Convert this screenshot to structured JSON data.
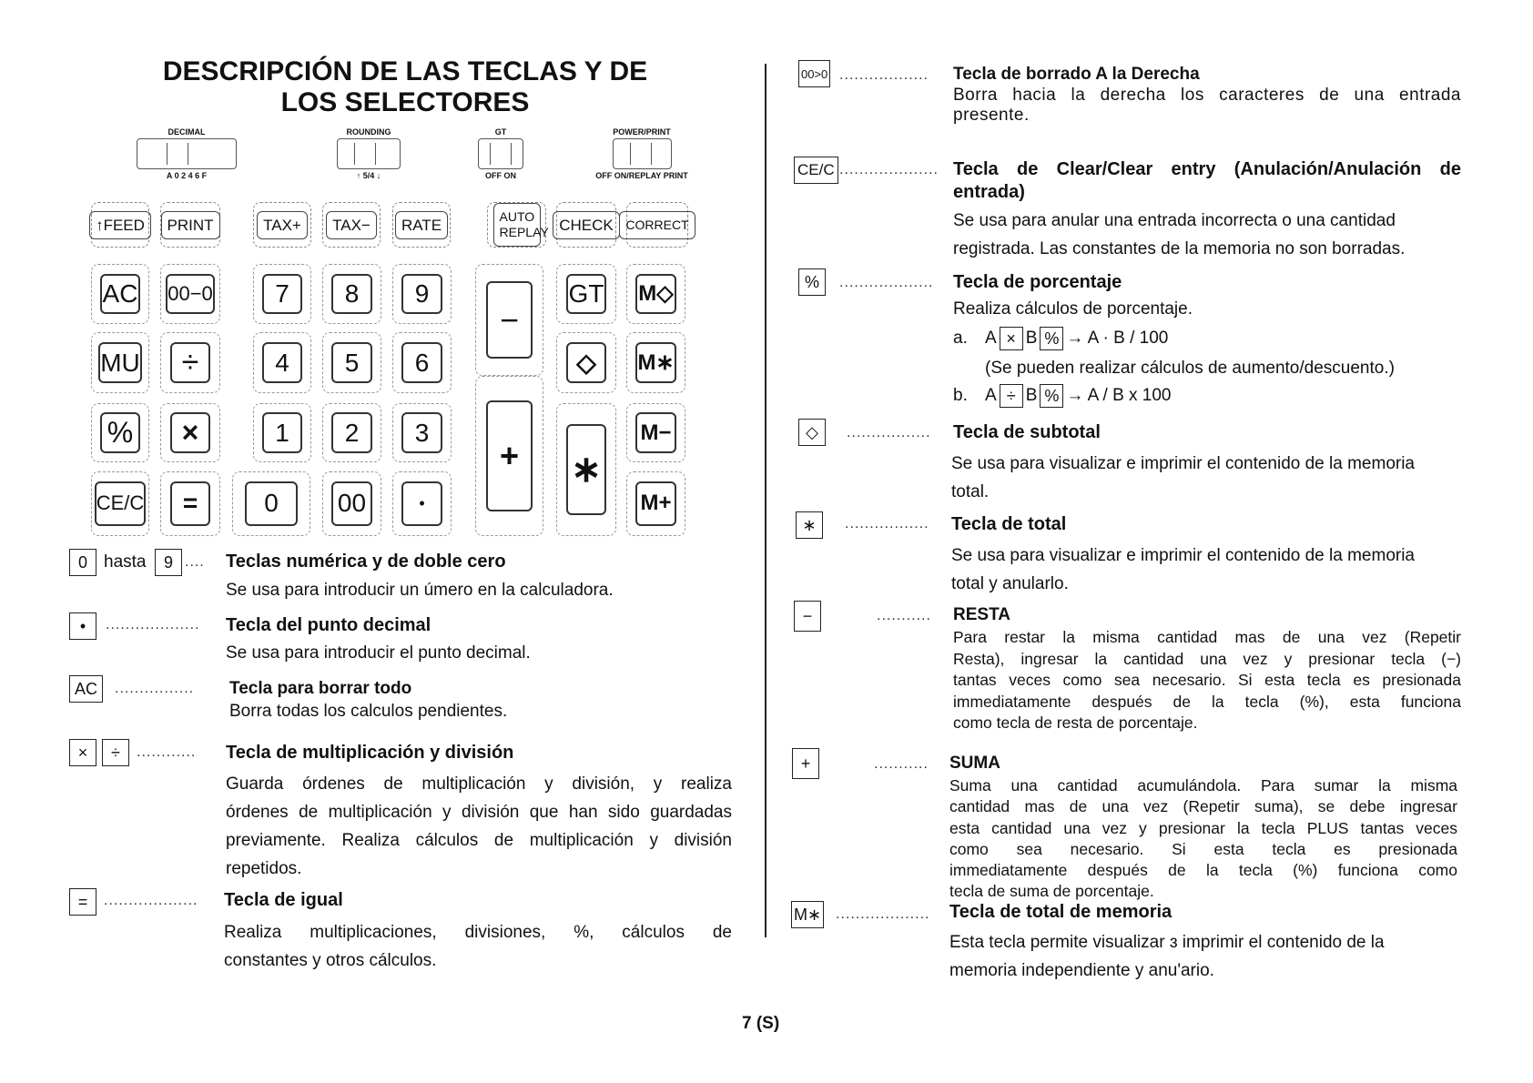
{
  "title": [
    "DESCRIPCIÓN DE LAS TECLAS Y DE",
    "LOS SELECTORES"
  ],
  "switches": [
    {
      "label": "DECIMAL",
      "marks": "A 0 2 4 6 F"
    },
    {
      "label": "ROUNDING",
      "marks": "↑ 5/4 ↓"
    },
    {
      "label": "GT",
      "marks": "OFF ON"
    },
    {
      "label": "POWER/PRINT",
      "marks": "OFF ON/REPLAY PRINT"
    }
  ],
  "function_keys": [
    "↑FEED",
    "PRINT",
    "TAX+",
    "TAX−",
    "RATE",
    "AUTO REPLAY",
    "CHECK",
    "CORRECT"
  ],
  "keys": {
    "ac": "AC",
    "k00_0": "00−0",
    "k7": "7",
    "k8": "8",
    "k9": "9",
    "minus": "−",
    "gt": "GT",
    "mdiamond": "M◇",
    "mu": "MU",
    "div": "÷",
    "k4": "4",
    "k5": "5",
    "k6": "6",
    "diamond": "◇",
    "mstar": "M∗",
    "pct": "%",
    "mul": "×",
    "k1": "1",
    "k2": "2",
    "k3": "3",
    "plus": "+",
    "star": "∗",
    "mminus": "M−",
    "cec": "CE/C",
    "eq": "=",
    "k0": "0",
    "k00": "00",
    "dot": "•",
    "mplus": "M+"
  },
  "left": [
    {
      "icon": "0",
      "icon2": "9",
      "between": "hasta",
      "dots": "....",
      "heading": "Teclas numérica y de doble cero",
      "body": [
        "Se usa para introducir un úmero en la calculadora."
      ]
    },
    {
      "icon": "•",
      "dots": "...................",
      "heading": "Tecla del punto decimal",
      "body": [
        "Se usa para introducir el punto decimal."
      ]
    },
    {
      "icon": "AC",
      "dots": "................",
      "heading": "Tecla para borrar todo",
      "body": [
        "Borra todas los calculos pendientes."
      ]
    },
    {
      "icon": "×",
      "icon2": "÷",
      "dots": "............",
      "heading": "Tecla de multiplicación y división",
      "body": [
        "Guarda órdenes de multiplicación y división, y realiza",
        "órdenes de multiplicación y división que han sido guardadas",
        "previamente. Realiza cálculos de multiplicación y división",
        "repetidos."
      ]
    },
    {
      "icon": "=",
      "dots": "...................",
      "heading": "Tecla de igual",
      "body": [
        "Realiza multiplicaciones, divisiones, %, cálculos de",
        "constantes y otros cálculos."
      ]
    }
  ],
  "right": [
    {
      "icon": "00>0",
      "dots": "..................",
      "heading": "Tecla de borrado A la Derecha",
      "body": [
        "Borra hacia la derecha los caracteres de una entrada",
        "presente."
      ]
    },
    {
      "icon": "CE/C",
      "dots": "....................",
      "heading": "Tecla de Clear/Clear entry (Anulación/Anulación de entrada)",
      "body": [
        "Se usa para anular una entrada incorrecta o una cantidad",
        "registrada. Las constantes de la memoria no son borradas."
      ]
    },
    {
      "icon": "%",
      "dots": "...................",
      "heading": "Tecla de porcentaje",
      "body": [
        "Realiza cálculos de porcentaje."
      ],
      "examples": [
        {
          "prefix": "a.",
          "a": "A",
          "op": "×",
          "b": "B",
          "pct": "%",
          "result": "→ A · B / 100"
        },
        {
          "note": "(Se pueden realizar cálculos de aumento/descuento.)"
        },
        {
          "prefix": "b.",
          "a": "A",
          "op": "÷",
          "b": "B",
          "pct": "%",
          "result": "→ A / B x 100"
        }
      ]
    },
    {
      "icon": "◇",
      "dots": ".................",
      "heading": "Tecla de subtotal",
      "body": [
        "Se usa para visualizar e imprimir el contenido de la memoria",
        "total."
      ]
    },
    {
      "icon": "∗",
      "dots": ".................",
      "heading": "Tecla de total",
      "body": [
        "Se usa para visualizar e imprimir el contenido de la memoria",
        "total y anularlo."
      ]
    },
    {
      "icon": "−",
      "dots": "...........",
      "heading": "RESTA",
      "body": [
        "Para restar la misma cantidad mas de una vez (Repetir",
        "Resta), ingresar la cantidad una vez y presionar tecla (−)",
        "tantas veces como sea necesario. Si esta tecla es presionada",
        "immediatamente después de la tecla (%), esta funciona",
        "como tecla de resta de porcentaje."
      ]
    },
    {
      "icon": "+",
      "dots": "...........",
      "heading": "SUMA",
      "body": [
        "Suma una cantidad acumulándola. Para sumar la misma",
        "cantidad mas de una vez (Repetir suma), se debe ingresar",
        "esta cantidad una vez y presionar la tecla PLUS tantas veces",
        "como sea necesario. Si esta tecla es presionada",
        "immediatamente después de la tecla (%) funciona como",
        "tecla de suma de porcentaje."
      ]
    },
    {
      "icon": "M∗",
      "dots": "...................",
      "heading": "Tecla de total de memoria",
      "body": [
        "Esta tecla permite visualizar ɜ imprimir el contenido de la",
        "memoria independiente y anu'ario."
      ]
    }
  ],
  "page_number": "7 (S)"
}
